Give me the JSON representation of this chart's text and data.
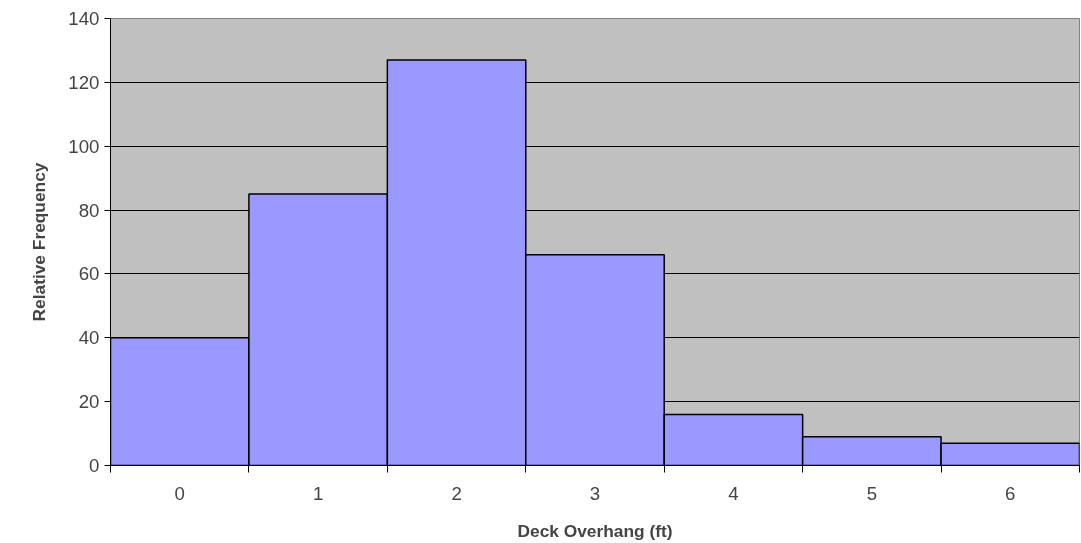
{
  "chart_data": {
    "type": "bar",
    "xlabel": "Deck Overhang (ft)",
    "ylabel": "Relative Frequency",
    "categories": [
      "0",
      "1",
      "2",
      "3",
      "4",
      "5",
      "6"
    ],
    "series": [
      {
        "color": "#9999ff",
        "values": [
          40,
          85,
          127,
          66,
          16,
          9,
          7
        ]
      }
    ],
    "ylim": [
      0,
      140
    ],
    "yticks": [
      0,
      20,
      40,
      60,
      80,
      100,
      120,
      140
    ],
    "grid": "y"
  }
}
